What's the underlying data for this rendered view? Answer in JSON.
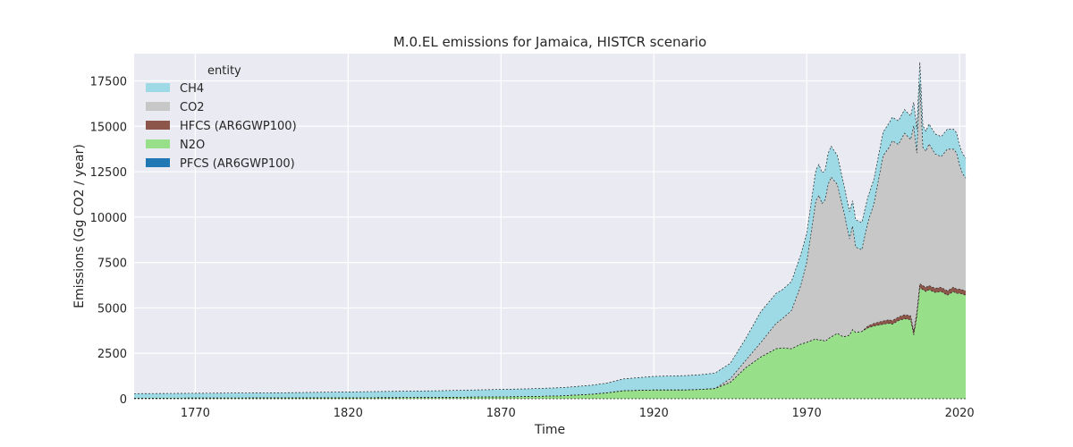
{
  "chart_data": {
    "type": "area",
    "stacked": true,
    "title": "M.0.EL emissions for Jamaica, HISTCR scenario",
    "xlabel": "Time",
    "ylabel": "Emissions (Gg CO2 / year)",
    "xlim": [
      1750,
      2022
    ],
    "ylim": [
      0,
      19000
    ],
    "xticks": [
      1770,
      1820,
      1870,
      1920,
      1970,
      2020
    ],
    "yticks": [
      0,
      2500,
      5000,
      7500,
      10000,
      12500,
      15000,
      17500
    ],
    "grid": true,
    "legend_title": "entity",
    "legend_position": "top-left",
    "x": [
      1750,
      1800,
      1850,
      1880,
      1890,
      1900,
      1905,
      1910,
      1920,
      1930,
      1935,
      1940,
      1945,
      1950,
      1955,
      1960,
      1962,
      1965,
      1968,
      1970,
      1973,
      1974,
      1975,
      1976,
      1977,
      1978,
      1980,
      1982,
      1984,
      1985,
      1986,
      1988,
      1990,
      1992,
      1995,
      1997,
      1998,
      2000,
      2002,
      2004,
      2005,
      2006,
      2007,
      2008,
      2009,
      2010,
      2012,
      2014,
      2016,
      2017,
      2018,
      2019,
      2020,
      2021,
      2022
    ],
    "series": [
      {
        "name": "PFCS (AR6GWP100)",
        "color": "#1f77b4",
        "values": [
          0,
          0,
          0,
          0,
          0,
          0,
          0,
          0,
          0,
          0,
          0,
          0,
          0,
          0,
          0,
          0,
          0,
          0,
          0,
          0,
          0,
          0,
          0,
          0,
          0,
          0,
          0,
          0,
          0,
          0,
          0,
          0,
          0,
          0,
          0,
          0,
          0,
          0,
          0,
          0,
          0,
          0,
          0,
          0,
          0,
          0,
          0,
          0,
          0,
          0,
          0,
          0,
          0,
          0,
          0
        ]
      },
      {
        "name": "N2O",
        "color": "#98df8a",
        "values": [
          30,
          45,
          70,
          120,
          160,
          250,
          330,
          440,
          480,
          480,
          510,
          560,
          900,
          1700,
          2300,
          2750,
          2800,
          2750,
          3000,
          3100,
          3300,
          3200,
          3250,
          3150,
          3300,
          3400,
          3600,
          3400,
          3500,
          3800,
          3650,
          3700,
          3900,
          4000,
          4100,
          4150,
          4100,
          4300,
          4400,
          4350,
          3500,
          4500,
          6100,
          6000,
          5900,
          6000,
          5850,
          5900,
          5700,
          5800,
          5900,
          5800,
          5800,
          5750,
          5700
        ]
      },
      {
        "name": "HFCS (AR6GWP100)",
        "color": "#8c564b",
        "values": [
          0,
          0,
          0,
          0,
          0,
          0,
          0,
          0,
          0,
          0,
          0,
          0,
          0,
          0,
          0,
          0,
          0,
          0,
          0,
          0,
          0,
          0,
          0,
          0,
          0,
          0,
          0,
          0,
          0,
          0,
          0,
          0,
          100,
          150,
          180,
          200,
          200,
          200,
          220,
          220,
          220,
          230,
          230,
          230,
          230,
          230,
          230,
          230,
          240,
          240,
          240,
          240,
          240,
          240,
          240
        ]
      },
      {
        "name": "CO2",
        "color": "#c7c7c7",
        "values": [
          0,
          0,
          0,
          0,
          0,
          0,
          0,
          0,
          0,
          0,
          0,
          0,
          200,
          400,
          800,
          1400,
          1600,
          2100,
          3200,
          4400,
          7600,
          8000,
          7500,
          7800,
          8500,
          8800,
          8200,
          7000,
          5300,
          5700,
          4700,
          4500,
          5700,
          6600,
          9100,
          9500,
          9900,
          9500,
          10000,
          9700,
          11300,
          8800,
          11000,
          7600,
          7500,
          7800,
          7400,
          7200,
          7800,
          7700,
          7600,
          7500,
          6800,
          6400,
          6200
        ]
      },
      {
        "name": "CH4",
        "color": "#9edae5",
        "values": [
          250,
          285,
          370,
          430,
          450,
          500,
          540,
          650,
          750,
          790,
          810,
          850,
          850,
          1200,
          1700,
          1650,
          1600,
          1600,
          1700,
          1600,
          1700,
          1700,
          1700,
          1600,
          1700,
          1700,
          1600,
          1500,
          1500,
          1400,
          1500,
          1500,
          1400,
          1350,
          1300,
          1350,
          1300,
          1300,
          1300,
          1300,
          1300,
          1300,
          1200,
          1200,
          1100,
          1100,
          1100,
          1100,
          1100,
          1100,
          1100,
          1100,
          1100,
          1100,
          1100
        ]
      }
    ]
  }
}
